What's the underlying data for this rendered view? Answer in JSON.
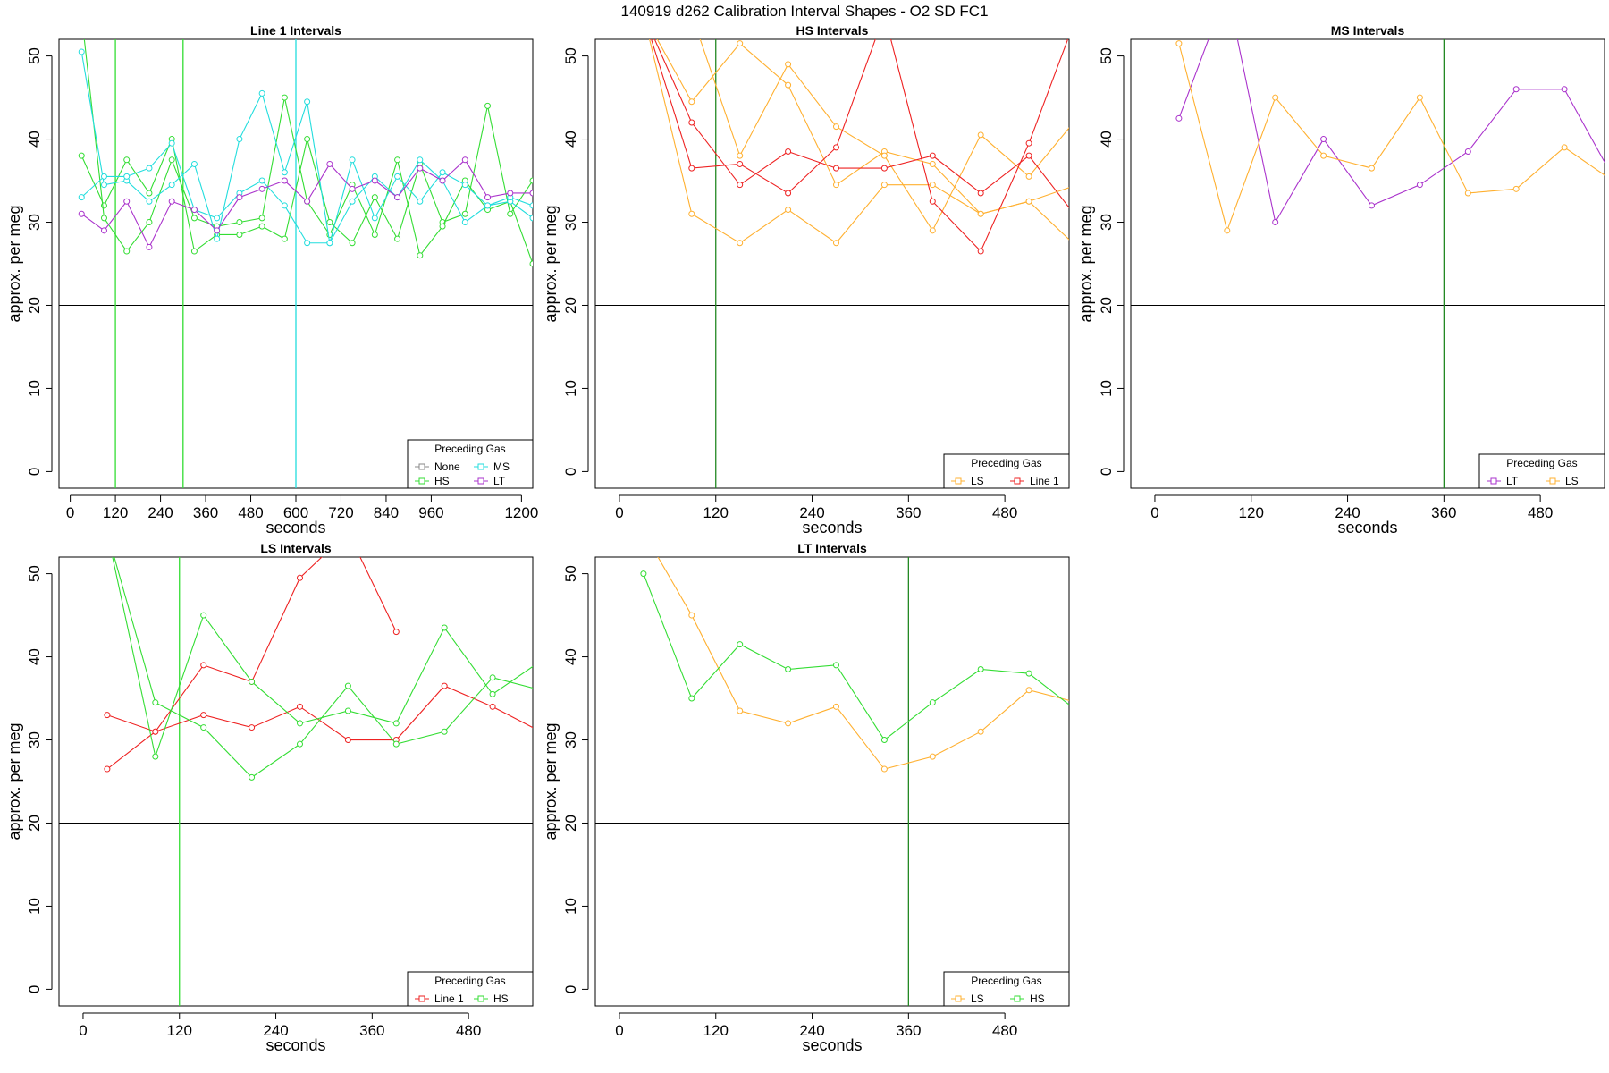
{
  "figure_title": "140919   d262   Calibration Interval Shapes - O2 SD FC1",
  "colors": {
    "None": "#888888",
    "HS": "#33dd33",
    "MS": "#22dddd",
    "LT": "#aa33cc",
    "LS": "#ffb030",
    "Line 1": "#ee2222",
    "vline": "#228822",
    "hline": "#000000"
  },
  "chart_data": [
    {
      "type": "line",
      "title": "Line 1 Intervals",
      "xlabel": "seconds",
      "ylabel": "approx. per meg",
      "xlim": [
        -30,
        1230
      ],
      "ylim": [
        -2,
        52
      ],
      "xticks": [
        0,
        120,
        240,
        360,
        480,
        600,
        720,
        840,
        960,
        1200
      ],
      "yticks": [
        0,
        10,
        20,
        30,
        40,
        50
      ],
      "hline": 20,
      "vlines": [
        {
          "x": 120,
          "color": "HS"
        },
        {
          "x": 300,
          "color": "HS"
        },
        {
          "x": 600,
          "color": "MS"
        }
      ],
      "legend": {
        "title": "Preceding Gas",
        "placement": "bottom-right",
        "entries": [
          "None",
          "MS",
          "HS",
          "LT"
        ]
      },
      "series": [
        {
          "name": "HS",
          "x": [
            30,
            90,
            150,
            210,
            270,
            330,
            390,
            450,
            510,
            570,
            630,
            690,
            750,
            810,
            870,
            930,
            990,
            1050,
            1110,
            1170,
            1230
          ],
          "values": [
            38,
            32,
            37.5,
            33.5,
            40,
            26.5,
            28.5,
            28.5,
            29.5,
            28,
            40,
            30,
            27.5,
            33,
            28,
            37,
            30,
            31,
            44,
            31,
            35
          ]
        },
        {
          "name": "HS",
          "x": [
            30,
            90,
            150,
            210,
            270,
            330,
            390,
            450,
            510,
            570,
            630,
            690,
            750,
            810,
            870,
            930,
            990,
            1050,
            1110,
            1170,
            1230
          ],
          "values": [
            55,
            30.5,
            26.5,
            30,
            37.5,
            30.5,
            29.5,
            30,
            30.5,
            45,
            32.5,
            28.5,
            34.5,
            28.5,
            37.5,
            26,
            29.5,
            35,
            31.5,
            32.5,
            25
          ]
        },
        {
          "name": "MS",
          "x": [
            30,
            90,
            150,
            210,
            270,
            330,
            390,
            450,
            510,
            570,
            630,
            690,
            750,
            810,
            870,
            930,
            990,
            1050,
            1110,
            1170,
            1230
          ],
          "values": [
            50.5,
            34.5,
            35,
            32.5,
            34.5,
            37,
            28,
            40,
            45.5,
            36,
            44.5,
            27.5,
            37.5,
            30.5,
            35.5,
            32.5,
            36,
            34.5,
            32,
            32.5,
            30.5
          ]
        },
        {
          "name": "MS",
          "x": [
            30,
            90,
            150,
            210,
            270,
            330,
            390,
            450,
            510,
            570,
            630,
            690,
            750,
            810,
            870,
            930,
            990,
            1050,
            1110,
            1170,
            1230
          ],
          "values": [
            33,
            35.5,
            35.5,
            36.5,
            39.5,
            31.5,
            30.5,
            33.5,
            35,
            32,
            27.5,
            27.5,
            32.5,
            35.5,
            33,
            37.5,
            35,
            30,
            32,
            33,
            32
          ]
        },
        {
          "name": "LT",
          "x": [
            30,
            90,
            150,
            210,
            270,
            330,
            390,
            450,
            510,
            570,
            630,
            690,
            750,
            810,
            870,
            930,
            990,
            1050,
            1110,
            1170,
            1230
          ],
          "values": [
            31,
            29,
            32.5,
            27,
            32.5,
            31.5,
            29,
            33,
            34,
            35,
            32.5,
            37,
            34,
            35,
            33,
            36.5,
            35,
            37.5,
            33,
            33.5,
            33.5
          ]
        }
      ]
    },
    {
      "type": "line",
      "title": "HS Intervals",
      "xlabel": "seconds",
      "ylabel": "approx. per meg",
      "xlim": [
        -30,
        560
      ],
      "ylim": [
        -2,
        52
      ],
      "xticks": [
        0,
        120,
        240,
        360,
        480
      ],
      "yticks": [
        0,
        10,
        20,
        30,
        40,
        50
      ],
      "hline": 20,
      "vlines": [
        {
          "x": 120,
          "color": "vline"
        }
      ],
      "legend": {
        "title": "Preceding Gas",
        "placement": "bottom-right",
        "entries": [
          "LS",
          "Line 1"
        ]
      },
      "series": [
        {
          "name": "LS",
          "x": [
            30,
            90,
            150,
            210,
            270,
            330,
            390,
            450,
            510,
            570
          ],
          "values": [
            55,
            44.5,
            51.5,
            46.5,
            34.5,
            38.5,
            37,
            31,
            32.5,
            34.5
          ]
        },
        {
          "name": "LS",
          "x": [
            30,
            90,
            150,
            210,
            270,
            330,
            390,
            450,
            510,
            570
          ],
          "values": [
            55,
            31,
            27.5,
            31.5,
            27.5,
            34.5,
            34.5,
            31,
            32.5,
            27
          ]
        },
        {
          "name": "LS",
          "x": [
            30,
            90,
            150,
            210,
            270,
            330,
            390,
            450,
            510,
            570
          ],
          "values": [
            55,
            55,
            38,
            49,
            41.5,
            38,
            29,
            40.5,
            35.5,
            42.5
          ]
        },
        {
          "name": "Line 1",
          "x": [
            30,
            90,
            150,
            210,
            270,
            330,
            390,
            450,
            510,
            570
          ],
          "values": [
            55,
            42,
            34.5,
            38.5,
            36.5,
            36.5,
            38,
            33.5,
            38,
            30.5
          ]
        },
        {
          "name": "Line 1",
          "x": [
            30,
            90,
            150,
            210,
            270,
            330,
            390,
            450,
            510,
            570
          ],
          "values": [
            55,
            36.5,
            37,
            33.5,
            39,
            55,
            32.5,
            26.5,
            39.5,
            55
          ]
        }
      ]
    },
    {
      "type": "line",
      "title": "MS Intervals",
      "xlabel": "seconds",
      "ylabel": "approx. per meg",
      "xlim": [
        -30,
        560
      ],
      "ylim": [
        -2,
        52
      ],
      "xticks": [
        0,
        120,
        240,
        360,
        480
      ],
      "yticks": [
        0,
        10,
        20,
        30,
        40,
        50
      ],
      "hline": 20,
      "vlines": [
        {
          "x": 360,
          "color": "vline"
        }
      ],
      "legend": {
        "title": "Preceding Gas",
        "placement": "bottom-right",
        "entries": [
          "LT",
          "LS"
        ]
      },
      "series": [
        {
          "name": "LT",
          "x": [
            30,
            90,
            150,
            210,
            270,
            330,
            390,
            450,
            510,
            570
          ],
          "values": [
            42.5,
            58,
            30,
            40,
            32,
            34.5,
            38.5,
            46,
            46,
            35.5
          ]
        },
        {
          "name": "LS",
          "x": [
            30,
            90,
            150,
            210,
            270,
            330,
            390,
            450,
            510,
            570
          ],
          "values": [
            51.5,
            29,
            45,
            38,
            36.5,
            45,
            33.5,
            34,
            39,
            35
          ]
        }
      ]
    },
    {
      "type": "line",
      "title": "LS Intervals",
      "xlabel": "seconds",
      "ylabel": "approx. per meg",
      "xlim": [
        -30,
        560
      ],
      "ylim": [
        -2,
        52
      ],
      "xticks": [
        0,
        120,
        240,
        360,
        480
      ],
      "yticks": [
        0,
        10,
        20,
        30,
        40,
        50
      ],
      "hline": 20,
      "vlines": [
        {
          "x": 120,
          "color": "HS"
        }
      ],
      "legend": {
        "title": "Preceding Gas",
        "placement": "bottom-right",
        "entries": [
          "Line 1",
          "HS"
        ]
      },
      "series": [
        {
          "name": "Line 1",
          "x": [
            30,
            90,
            150,
            210,
            270,
            330,
            390,
            450,
            510,
            570
          ],
          "values": [
            26.5,
            31,
            39,
            37,
            49.5,
            55,
            43,
            null,
            null,
            null
          ]
        },
        {
          "name": "Line 1",
          "x": [
            30,
            90,
            150,
            210,
            270,
            330,
            390,
            450,
            510,
            570
          ],
          "values": [
            33,
            31,
            33,
            31.5,
            34,
            30,
            30,
            36.5,
            34,
            31
          ]
        },
        {
          "name": "Line 1",
          "x": [
            30,
            90,
            150,
            210,
            270,
            330,
            390,
            450,
            510,
            570
          ],
          "values": [
            null,
            null,
            null,
            null,
            null,
            null,
            null,
            null,
            null,
            null
          ]
        },
        {
          "name": "HS",
          "x": [
            30,
            90,
            150,
            210,
            270,
            330,
            390,
            450,
            510,
            570
          ],
          "values": [
            55,
            28,
            45,
            37,
            32,
            33.5,
            32,
            43.5,
            35.5,
            39.5
          ]
        },
        {
          "name": "HS",
          "x": [
            30,
            90,
            150,
            210,
            270,
            330,
            390,
            450,
            510,
            570
          ],
          "values": [
            55,
            34.5,
            31.5,
            25.5,
            29.5,
            36.5,
            29.5,
            31,
            37.5,
            36
          ]
        }
      ]
    },
    {
      "type": "line",
      "title": "LT Intervals",
      "xlabel": "seconds",
      "ylabel": "approx. per meg",
      "xlim": [
        -30,
        560
      ],
      "ylim": [
        -2,
        52
      ],
      "xticks": [
        0,
        120,
        240,
        360,
        480
      ],
      "yticks": [
        0,
        10,
        20,
        30,
        40,
        50
      ],
      "hline": 20,
      "vlines": [
        {
          "x": 360,
          "color": "vline"
        }
      ],
      "legend": {
        "title": "Preceding Gas",
        "placement": "bottom-right",
        "entries": [
          "LS",
          "HS"
        ]
      },
      "series": [
        {
          "name": "LS",
          "x": [
            30,
            90,
            150,
            210,
            270,
            330,
            390,
            450,
            510,
            570
          ],
          "values": [
            55,
            45,
            33.5,
            32,
            34,
            26.5,
            28,
            31,
            36,
            34.5
          ]
        },
        {
          "name": "HS",
          "x": [
            30,
            90,
            150,
            210,
            270,
            330,
            390,
            450,
            510,
            570
          ],
          "values": [
            50,
            35,
            41.5,
            38.5,
            39,
            30,
            34.5,
            38.5,
            38,
            33.5
          ]
        }
      ]
    }
  ]
}
